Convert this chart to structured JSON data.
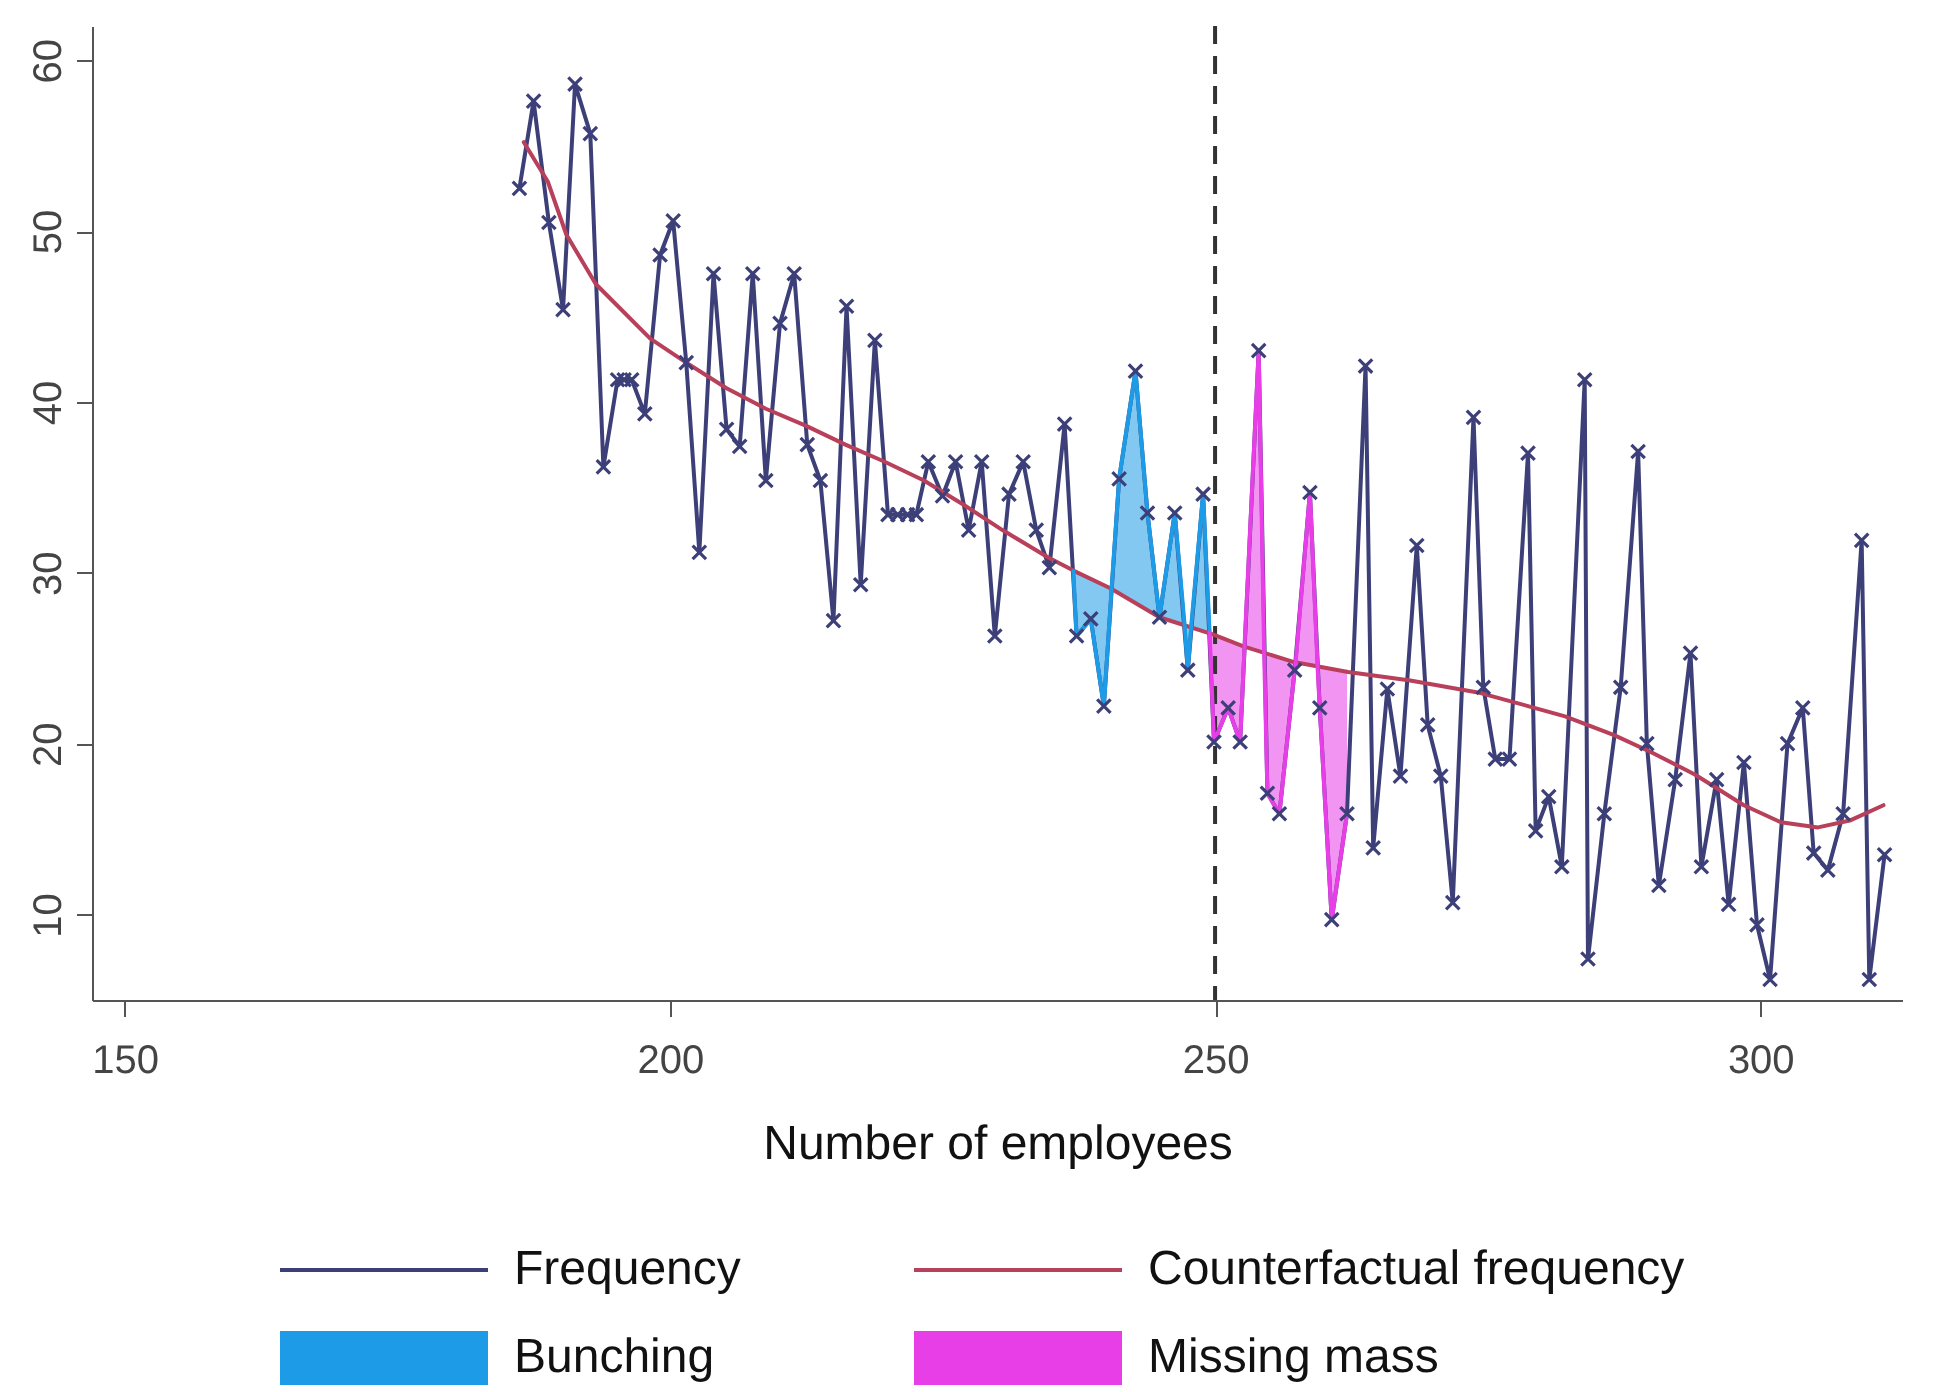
{
  "chart_data": {
    "type": "line",
    "xlabel": "Number of employees",
    "xlim": [
      147,
      313
    ],
    "xticks": [
      150,
      200,
      250,
      300
    ],
    "ylim": [
      5,
      62
    ],
    "yticks": [
      10,
      20,
      30,
      40,
      50,
      60
    ],
    "legend": "bottom",
    "ref_lines": [
      {
        "axis": "x",
        "value": 250,
        "color": "#333333",
        "line_style": "dashed"
      }
    ],
    "series": [
      {
        "name": "Frequency",
        "marker": "cross",
        "color": "#3c3f78",
        "x": [
          186.2,
          187.5,
          188.9,
          190.2,
          191.3,
          192.7,
          193.9,
          195.2,
          195.8,
          196.5,
          197.7,
          199.1,
          200.3,
          201.5,
          202.7,
          204.0,
          205.2,
          206.4,
          207.6,
          208.8,
          210.1,
          211.4,
          212.6,
          213.8,
          215.0,
          216.2,
          217.5,
          218.8,
          220.0,
          220.9,
          221.8,
          222.6,
          223.7,
          225.0,
          226.2,
          227.4,
          228.6,
          229.8,
          231.1,
          232.4,
          233.6,
          234.8,
          236.2,
          237.3,
          238.6,
          239.8,
          241.2,
          242.7,
          243.8,
          244.9,
          246.3,
          247.5,
          248.9,
          249.9,
          251.2,
          252.3,
          254.0,
          254.8,
          255.9,
          257.3,
          258.7,
          259.6,
          260.7,
          262.1,
          263.8,
          264.5,
          265.8,
          267.0,
          268.5,
          269.5,
          270.7,
          271.8,
          273.7,
          274.6,
          275.7,
          277.0,
          278.7,
          279.4,
          280.6,
          281.8,
          283.9,
          284.2,
          285.7,
          287.2,
          288.8,
          289.6,
          290.7,
          292.2,
          293.6,
          294.6,
          296.0,
          297.1,
          298.5,
          299.7,
          300.9,
          302.5,
          303.9,
          304.9,
          306.2,
          307.6,
          309.3,
          310.0,
          311.4
        ],
        "values": [
          52.5,
          57.6,
          50.5,
          45.4,
          58.6,
          55.7,
          36.2,
          41.3,
          41.3,
          41.3,
          39.3,
          48.6,
          50.6,
          42.3,
          31.2,
          47.5,
          38.4,
          37.4,
          47.5,
          35.4,
          44.6,
          47.5,
          37.5,
          35.4,
          27.2,
          45.6,
          29.3,
          43.6,
          33.4,
          33.4,
          33.4,
          33.4,
          36.5,
          34.5,
          36.5,
          32.5,
          36.5,
          26.3,
          34.6,
          36.5,
          32.5,
          30.3,
          38.7,
          26.3,
          27.3,
          22.2,
          35.5,
          41.8,
          33.5,
          27.4,
          33.5,
          24.3,
          34.6,
          20.1,
          22.1,
          20.1,
          43.0,
          17.1,
          15.9,
          24.3,
          34.7,
          22.1,
          9.7,
          15.9,
          42.1,
          13.9,
          23.2,
          18.1,
          31.6,
          21.1,
          18.1,
          10.7,
          39.1,
          23.3,
          19.1,
          19.1,
          37.0,
          14.9,
          16.9,
          12.8,
          41.3,
          7.4,
          15.9,
          23.3,
          37.1,
          20.0,
          11.7,
          17.9,
          25.3,
          12.8,
          17.9,
          10.6,
          18.9,
          9.4,
          6.2,
          20.0,
          22.1,
          13.6,
          12.6,
          15.9,
          31.9,
          6.2,
          13.5
        ]
      },
      {
        "name": "Counterfactual frequency",
        "color": "#b8405a",
        "x": [
          186.6,
          188.8,
          190.5,
          193.2,
          198.2,
          201.5,
          205.2,
          208.8,
          212.5,
          216.1,
          219.7,
          223.3,
          226.9,
          230.5,
          234.7,
          237.1,
          240.4,
          244.9,
          249.8,
          252.6,
          257.1,
          262.2,
          267.9,
          274.1,
          278.7,
          282.1,
          286.6,
          290.0,
          294.0,
          298.5,
          301.9,
          305.3,
          308.2,
          311.3
        ],
        "values": [
          55.2,
          52.9,
          49.8,
          46.9,
          43.7,
          42.3,
          40.8,
          39.6,
          38.6,
          37.5,
          36.5,
          35.4,
          34.0,
          32.5,
          30.9,
          30.1,
          29.1,
          27.4,
          26.4,
          25.7,
          24.8,
          24.2,
          23.7,
          23.0,
          22.2,
          21.6,
          20.5,
          19.5,
          18.2,
          16.4,
          15.4,
          15.1,
          15.5,
          16.4
        ]
      },
      {
        "name": "Bunching",
        "color": "#1e9be6",
        "x": [
          237.0,
          237.3,
          238.6,
          239.8,
          240.5,
          241.2,
          242.7,
          243.8,
          244.9,
          246.3,
          247.2,
          247.5,
          247.8,
          248.9,
          249.5
        ],
        "values": [
          30.1,
          26.3,
          27.3,
          22.2,
          29.0,
          35.5,
          41.8,
          33.5,
          27.4,
          33.5,
          27.0,
          24.3,
          26.8,
          34.6,
          26.5
        ],
        "lower": [
          30.1,
          26.3,
          27.3,
          22.2,
          29.0,
          28.8,
          28.3,
          27.8,
          27.4,
          27.1,
          27.0,
          24.3,
          26.8,
          26.6,
          26.5
        ],
        "upper": [
          30.1,
          30.0,
          29.6,
          29.3,
          29.0,
          35.5,
          41.8,
          33.5,
          27.4,
          33.5,
          27.0,
          26.9,
          26.8,
          34.6,
          26.5
        ]
      },
      {
        "name": "Missing mass",
        "color": "#e83ee8",
        "x": [
          249.5,
          249.9,
          251.2,
          252.3,
          252.7,
          254.0,
          254.5,
          254.8,
          255.9,
          257.3,
          257.4,
          258.7,
          259.4,
          259.6,
          260.7,
          262.1
        ],
        "values": [
          26.5,
          20.1,
          22.1,
          20.1,
          25.7,
          43.0,
          25.3,
          17.1,
          15.9,
          24.3,
          24.8,
          34.7,
          24.5,
          22.1,
          9.7,
          15.9
        ],
        "lower": [
          26.5,
          20.1,
          22.1,
          20.1,
          25.7,
          25.4,
          25.3,
          17.1,
          15.9,
          24.3,
          24.8,
          24.6,
          24.5,
          22.1,
          9.7,
          15.9
        ],
        "upper": [
          26.5,
          26.4,
          26.0,
          25.8,
          25.7,
          43.0,
          25.3,
          25.2,
          25.0,
          24.8,
          24.8,
          34.7,
          24.5,
          24.5,
          24.4,
          24.2
        ]
      }
    ]
  }
}
